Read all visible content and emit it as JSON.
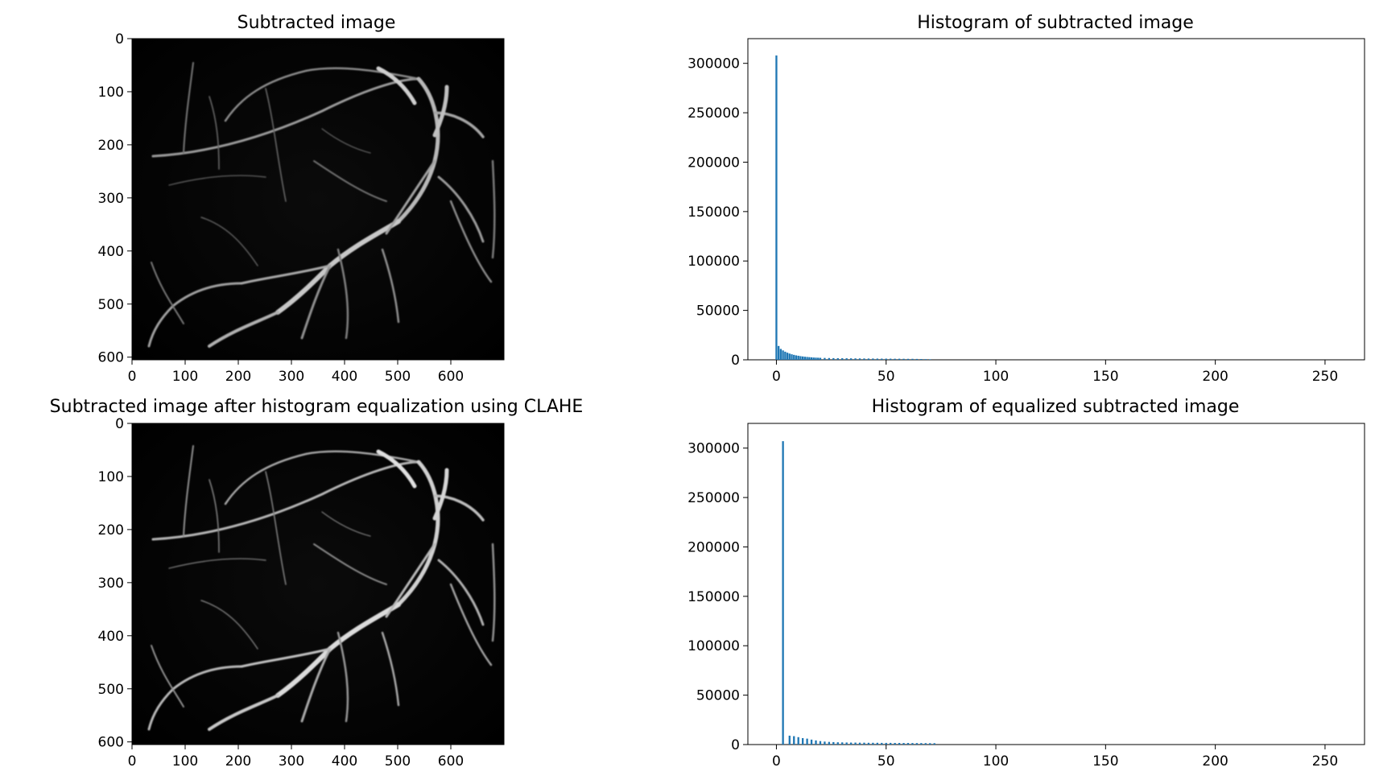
{
  "colors": {
    "bar": "#1f77b4",
    "axes": "#000000",
    "background": "#ffffff"
  },
  "chart_data": [
    {
      "id": "subtracted-image",
      "type": "image",
      "title": "Subtracted image",
      "xlim": [
        0,
        700
      ],
      "ylim": [
        605,
        0
      ],
      "x_ticks": [
        0,
        100,
        200,
        300,
        400,
        500,
        600
      ],
      "y_ticks": [
        0,
        100,
        200,
        300,
        400,
        500,
        600
      ],
      "content": "grayscale retinal vessel image, dark background with light vessels"
    },
    {
      "id": "histogram-subtracted",
      "type": "bar",
      "title": "Histogram of subtracted image",
      "xlim": [
        -13,
        268
      ],
      "ylim": [
        0,
        325000
      ],
      "x_ticks": [
        0,
        50,
        100,
        150,
        200,
        250
      ],
      "y_ticks": [
        0,
        50000,
        100000,
        150000,
        200000,
        250000,
        300000
      ],
      "bins": [
        {
          "x": 0,
          "count": 308000
        },
        {
          "x": 1,
          "count": 14000
        },
        {
          "x": 2,
          "count": 11000
        },
        {
          "x": 3,
          "count": 9500
        },
        {
          "x": 4,
          "count": 8200
        },
        {
          "x": 5,
          "count": 7200
        },
        {
          "x": 6,
          "count": 6300
        },
        {
          "x": 7,
          "count": 5600
        },
        {
          "x": 8,
          "count": 5000
        },
        {
          "x": 9,
          "count": 4500
        },
        {
          "x": 10,
          "count": 4100
        },
        {
          "x": 11,
          "count": 3700
        },
        {
          "x": 12,
          "count": 3400
        },
        {
          "x": 13,
          "count": 3100
        },
        {
          "x": 14,
          "count": 2900
        },
        {
          "x": 15,
          "count": 2700
        },
        {
          "x": 16,
          "count": 2500
        },
        {
          "x": 17,
          "count": 2300
        },
        {
          "x": 18,
          "count": 2200
        },
        {
          "x": 19,
          "count": 2100
        },
        {
          "x": 20,
          "count": 2000
        },
        {
          "x": 22,
          "count": 1900
        },
        {
          "x": 24,
          "count": 1800
        },
        {
          "x": 26,
          "count": 1700
        },
        {
          "x": 28,
          "count": 1650
        },
        {
          "x": 30,
          "count": 1600
        },
        {
          "x": 32,
          "count": 1550
        },
        {
          "x": 34,
          "count": 1500
        },
        {
          "x": 36,
          "count": 1450
        },
        {
          "x": 38,
          "count": 1400
        },
        {
          "x": 40,
          "count": 1350
        },
        {
          "x": 42,
          "count": 1300
        },
        {
          "x": 44,
          "count": 1300
        },
        {
          "x": 46,
          "count": 1250
        },
        {
          "x": 48,
          "count": 1200
        },
        {
          "x": 50,
          "count": 1200
        },
        {
          "x": 52,
          "count": 1150
        },
        {
          "x": 54,
          "count": 1100
        },
        {
          "x": 56,
          "count": 1100
        },
        {
          "x": 58,
          "count": 1050
        },
        {
          "x": 60,
          "count": 1000
        },
        {
          "x": 62,
          "count": 1000
        },
        {
          "x": 64,
          "count": 900
        },
        {
          "x": 66,
          "count": 800
        },
        {
          "x": 68,
          "count": 700
        },
        {
          "x": 70,
          "count": 600
        }
      ]
    },
    {
      "id": "clahe-image",
      "type": "image",
      "title": "Subtracted image after histogram equalization using CLAHE",
      "xlim": [
        0,
        700
      ],
      "ylim": [
        605,
        0
      ],
      "x_ticks": [
        0,
        100,
        200,
        300,
        400,
        500,
        600
      ],
      "y_ticks": [
        0,
        100,
        200,
        300,
        400,
        500,
        600
      ],
      "content": "contrast-enhanced grayscale retinal vessel image, dark background with brighter vessels"
    },
    {
      "id": "histogram-equalized",
      "type": "bar",
      "title": "Histogram of equalized subtracted image",
      "xlim": [
        -13,
        268
      ],
      "ylim": [
        0,
        325000
      ],
      "x_ticks": [
        0,
        50,
        100,
        150,
        200,
        250
      ],
      "y_ticks": [
        0,
        50000,
        100000,
        150000,
        200000,
        250000,
        300000
      ],
      "bins": [
        {
          "x": 3,
          "count": 307000
        },
        {
          "x": 6,
          "count": 9000
        },
        {
          "x": 8,
          "count": 8500
        },
        {
          "x": 10,
          "count": 7500
        },
        {
          "x": 12,
          "count": 6500
        },
        {
          "x": 14,
          "count": 6000
        },
        {
          "x": 16,
          "count": 5000
        },
        {
          "x": 18,
          "count": 4200
        },
        {
          "x": 20,
          "count": 3500
        },
        {
          "x": 22,
          "count": 3000
        },
        {
          "x": 24,
          "count": 2700
        },
        {
          "x": 26,
          "count": 2500
        },
        {
          "x": 28,
          "count": 2300
        },
        {
          "x": 30,
          "count": 2200
        },
        {
          "x": 32,
          "count": 2100
        },
        {
          "x": 34,
          "count": 2000
        },
        {
          "x": 36,
          "count": 2000
        },
        {
          "x": 38,
          "count": 1900
        },
        {
          "x": 40,
          "count": 1900
        },
        {
          "x": 42,
          "count": 1800
        },
        {
          "x": 44,
          "count": 1800
        },
        {
          "x": 46,
          "count": 1800
        },
        {
          "x": 48,
          "count": 1700
        },
        {
          "x": 50,
          "count": 1700
        },
        {
          "x": 52,
          "count": 1700
        },
        {
          "x": 54,
          "count": 1650
        },
        {
          "x": 56,
          "count": 1650
        },
        {
          "x": 58,
          "count": 1600
        },
        {
          "x": 60,
          "count": 1600
        },
        {
          "x": 62,
          "count": 1550
        },
        {
          "x": 64,
          "count": 1500
        },
        {
          "x": 66,
          "count": 1500
        },
        {
          "x": 68,
          "count": 1450
        },
        {
          "x": 70,
          "count": 1400
        },
        {
          "x": 72,
          "count": 1400
        }
      ]
    }
  ]
}
